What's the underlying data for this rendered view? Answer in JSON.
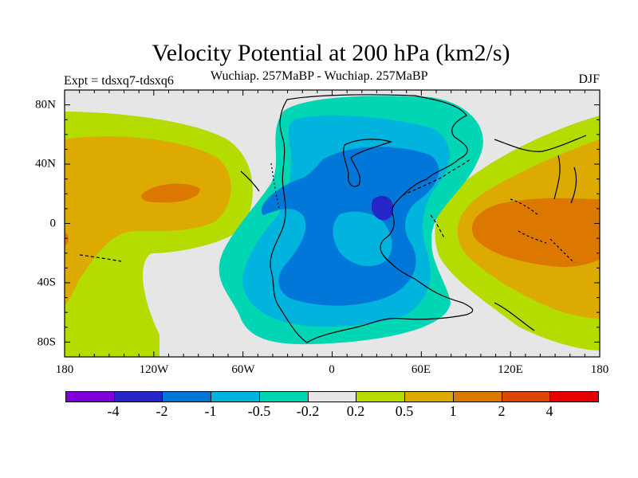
{
  "title": "Velocity Potential at 200 hPa (km2/s)",
  "subtitle": "Wuchiap. 257MaBP - Wuchiap. 257MaBP",
  "experiment": "Expt = tdsxq7-tdsxq6",
  "season": "DJF",
  "map": {
    "projection": "equirectangular",
    "lon_range": [
      -180,
      180
    ],
    "lat_range": [
      -90,
      90
    ],
    "lon_ticks": [
      "180",
      "120W",
      "60W",
      "0",
      "60E",
      "120E",
      "180"
    ],
    "lat_ticks": [
      "80N",
      "40N",
      "0",
      "40S",
      "80S"
    ],
    "background_color": "#e6e6e6",
    "coastline_color": "#000000"
  },
  "colorbar": {
    "colors": [
      "#7f00d8",
      "#2626c8",
      "#0077d9",
      "#00b4de",
      "#00d6b4",
      "#e6e6e6",
      "#b4dc00",
      "#dcaa00",
      "#dc7800",
      "#dc4600",
      "#e60000"
    ],
    "labels": [
      "-4",
      "-2",
      "-1",
      "-0.5",
      "-0.2",
      "0.2",
      "0.5",
      "1",
      "2",
      "4"
    ]
  },
  "chart_data": {
    "type": "filled-contour map",
    "variable": "velocity potential difference",
    "units": "km2/s",
    "levels": [
      -4,
      -2,
      -1,
      -0.5,
      -0.2,
      0.2,
      0.5,
      1,
      2,
      4
    ],
    "features": [
      {
        "name": "minimum",
        "lon": 35,
        "lat": 13,
        "value": -2
      },
      {
        "name": "negative-region",
        "lon_range": [
          -55,
          80
        ],
        "lat_range": [
          -80,
          85
        ],
        "value": -1
      },
      {
        "name": "maximum-east",
        "lon": 145,
        "lat": -5,
        "value": 2
      },
      {
        "name": "maximum-pacific",
        "lon": -110,
        "lat": 20,
        "value": 2
      },
      {
        "name": "positive-region-west",
        "lon_range": [
          -180,
          -60
        ],
        "lat_range": [
          -75,
          80
        ],
        "value": 0.5
      },
      {
        "name": "positive-region-east",
        "lon_range": [
          75,
          180
        ],
        "lat_range": [
          -75,
          75
        ],
        "value": 0.5
      }
    ]
  }
}
